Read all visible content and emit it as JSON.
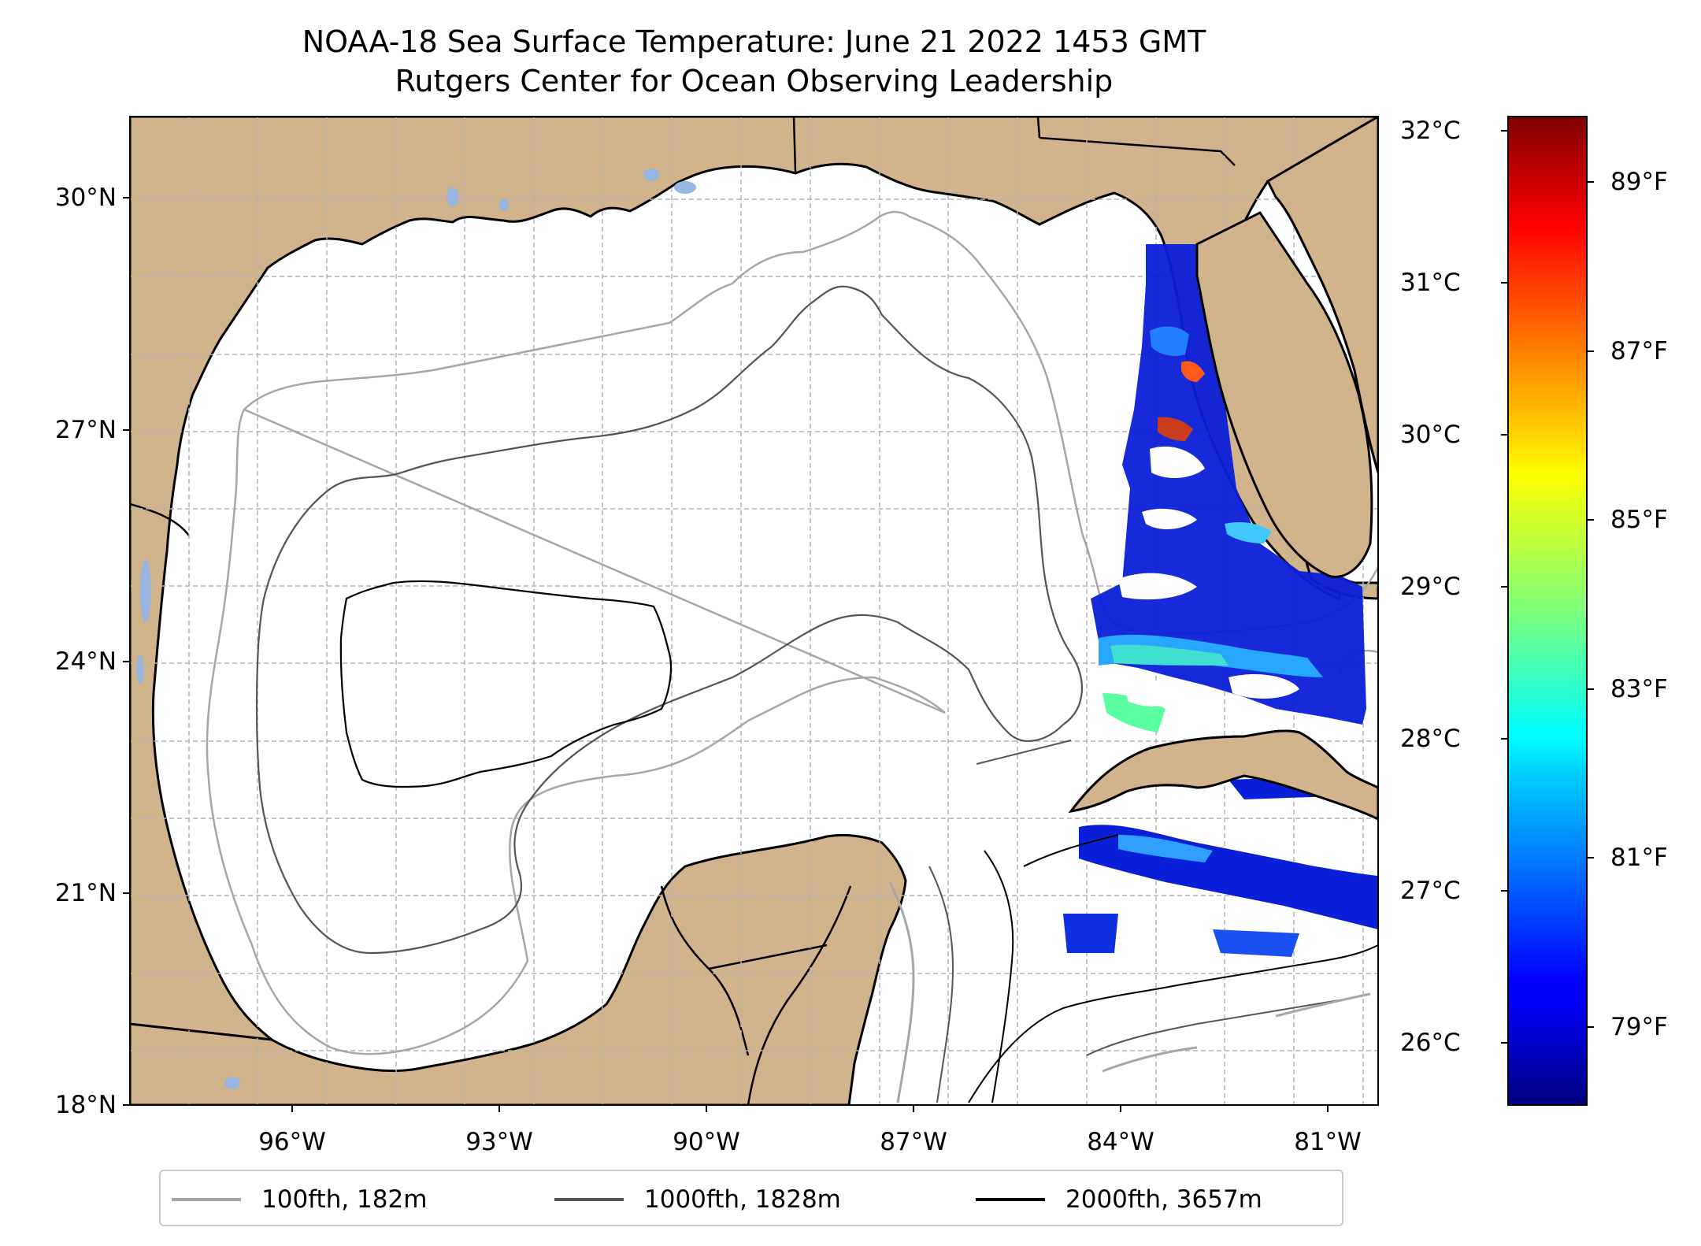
{
  "title": "NOAA-18 Sea Surface Temperature: June 21 2022 1453 GMT",
  "subtitle": "Rutgers Center for Ocean Observing Leadership",
  "colors": {
    "land": "#d2b48c",
    "lakes": "#97b6e1",
    "ocean_nodata": "#ffffff",
    "contour_100": "#a6a6a6",
    "contour_1000": "#555555",
    "contour_2000": "#000000"
  },
  "map": {
    "lon_range": [
      -98.2,
      -80.2
    ],
    "lat_range": [
      18.0,
      30.8
    ],
    "lon_ticks": [
      {
        "value": -96,
        "label": "96°W"
      },
      {
        "value": -93,
        "label": "93°W"
      },
      {
        "value": -90,
        "label": "90°W"
      },
      {
        "value": -87,
        "label": "87°W"
      },
      {
        "value": -84,
        "label": "84°W"
      },
      {
        "value": -81,
        "label": "81°W"
      }
    ],
    "lat_ticks": [
      {
        "value": 30,
        "label": "30°N"
      },
      {
        "value": 27,
        "label": "27°N"
      },
      {
        "value": 24,
        "label": "24°N"
      },
      {
        "value": 21,
        "label": "21°N"
      },
      {
        "value": 18,
        "label": "18°N"
      }
    ],
    "grid": true
  },
  "colorbar": {
    "colormap": "jet",
    "range_c": [
      25.6,
      32.1
    ],
    "celsius_ticks": [
      "32°C",
      "31°C",
      "30°C",
      "29°C",
      "28°C",
      "27°C",
      "26°C"
    ],
    "celsius_values": [
      32,
      31,
      30,
      29,
      28,
      27,
      26
    ],
    "fahrenheit_ticks": [
      "89°F",
      "87°F",
      "85°F",
      "83°F",
      "81°F",
      "79°F"
    ],
    "fahrenheit_values": [
      89,
      87,
      85,
      83,
      81,
      79
    ]
  },
  "legend": {
    "items": [
      {
        "label": "100fth, 182m",
        "color": "#a6a6a6"
      },
      {
        "label": "1000fth, 1828m",
        "color": "#555555"
      },
      {
        "label": "2000fth, 3657m",
        "color": "#000000"
      }
    ]
  }
}
